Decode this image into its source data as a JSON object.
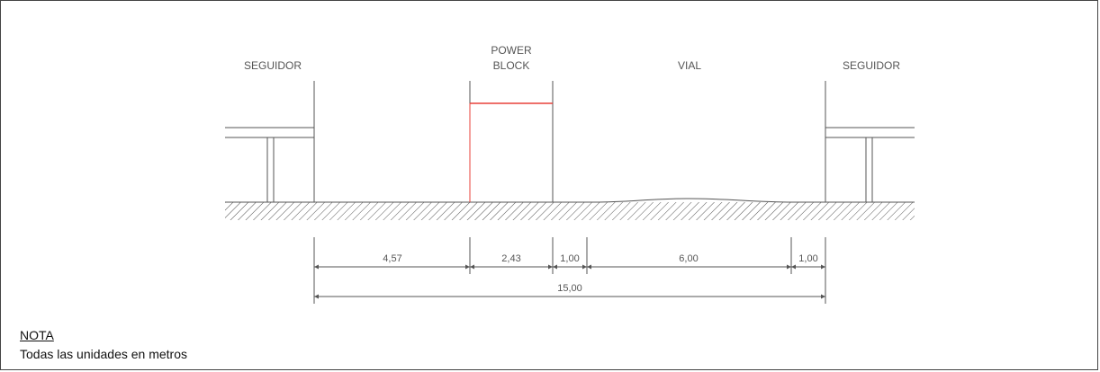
{
  "labels": {
    "seguidor_left": "SEGUIDOR",
    "power_line1": "POWER",
    "power_line2": "BLOCK",
    "vial": "VIAL",
    "seguidor_right": "SEGUIDOR"
  },
  "dimensions": {
    "d1": "4,57",
    "d2": "2,43",
    "d3": "1,00",
    "d4": "6,00",
    "d5": "1,00",
    "total": "15,00"
  },
  "note": {
    "title": "NOTA",
    "text": "Todas las unidades en metros"
  },
  "colors": {
    "line": "#555555",
    "red": "#e8403a"
  }
}
